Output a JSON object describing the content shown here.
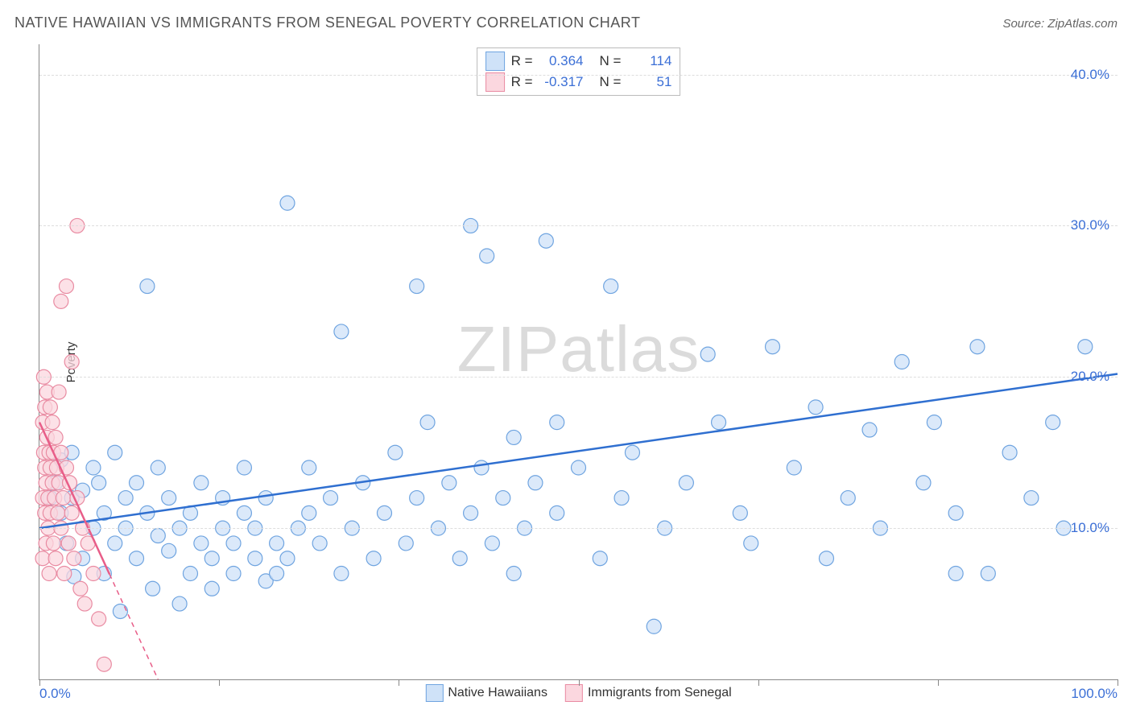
{
  "title": "NATIVE HAWAIIAN VS IMMIGRANTS FROM SENEGAL POVERTY CORRELATION CHART",
  "source": "Source: ZipAtlas.com",
  "watermark": "ZIPatlas",
  "ylabel": "Poverty",
  "chart": {
    "type": "scatter",
    "background_color": "#ffffff",
    "grid_color": "#dddddd",
    "axis_color": "#888888",
    "xlim": [
      0,
      100
    ],
    "ylim": [
      0,
      42
    ],
    "ytick_values": [
      10,
      20,
      30,
      40
    ],
    "ytick_labels": [
      "10.0%",
      "20.0%",
      "30.0%",
      "40.0%"
    ],
    "xtick_values": [
      0,
      16.67,
      33.33,
      50,
      66.67,
      83.33,
      100
    ],
    "xtick_labels_shown": {
      "0": "0.0%",
      "100": "100.0%"
    },
    "tick_label_color": "#3b6fd6",
    "tick_label_fontsize": 17,
    "marker_radius": 9,
    "marker_stroke_width": 1.2,
    "trend_line_width": 2.5,
    "series": [
      {
        "name": "Native Hawaiians",
        "fill": "#cfe2f8",
        "stroke": "#6fa4e0",
        "line_color": "#2f6fd0",
        "R": 0.364,
        "N": 114,
        "trend": {
          "x1": 0,
          "y1": 10.0,
          "x2": 100,
          "y2": 20.2,
          "dash_after_x": null
        },
        "points": [
          [
            1,
            12
          ],
          [
            1.5,
            13
          ],
          [
            2,
            11
          ],
          [
            2,
            14.5
          ],
          [
            2.5,
            9
          ],
          [
            3,
            12
          ],
          [
            3,
            15
          ],
          [
            3.2,
            6.8
          ],
          [
            4,
            12.5
          ],
          [
            4,
            8
          ],
          [
            5,
            14
          ],
          [
            5,
            10
          ],
          [
            5.5,
            13
          ],
          [
            6,
            7
          ],
          [
            6,
            11
          ],
          [
            7,
            15
          ],
          [
            7,
            9
          ],
          [
            7.5,
            4.5
          ],
          [
            8,
            12
          ],
          [
            8,
            10
          ],
          [
            9,
            13
          ],
          [
            9,
            8
          ],
          [
            10,
            11
          ],
          [
            10,
            26
          ],
          [
            10.5,
            6
          ],
          [
            11,
            9.5
          ],
          [
            11,
            14
          ],
          [
            12,
            8.5
          ],
          [
            12,
            12
          ],
          [
            13,
            10
          ],
          [
            13,
            5
          ],
          [
            14,
            7
          ],
          [
            14,
            11
          ],
          [
            15,
            9
          ],
          [
            15,
            13
          ],
          [
            16,
            8
          ],
          [
            16,
            6
          ],
          [
            17,
            10
          ],
          [
            17,
            12
          ],
          [
            18,
            7
          ],
          [
            18,
            9
          ],
          [
            19,
            11
          ],
          [
            19,
            14
          ],
          [
            20,
            8
          ],
          [
            20,
            10
          ],
          [
            21,
            6.5
          ],
          [
            21,
            12
          ],
          [
            22,
            9
          ],
          [
            22,
            7
          ],
          [
            23,
            31.5
          ],
          [
            23,
            8
          ],
          [
            24,
            10
          ],
          [
            25,
            14
          ],
          [
            25,
            11
          ],
          [
            26,
            9
          ],
          [
            27,
            12
          ],
          [
            28,
            23
          ],
          [
            28,
            7
          ],
          [
            29,
            10
          ],
          [
            30,
            13
          ],
          [
            31,
            8
          ],
          [
            32,
            11
          ],
          [
            33,
            15
          ],
          [
            34,
            9
          ],
          [
            35,
            12
          ],
          [
            35,
            26
          ],
          [
            36,
            17
          ],
          [
            37,
            10
          ],
          [
            38,
            13
          ],
          [
            39,
            8
          ],
          [
            40,
            30
          ],
          [
            40,
            11
          ],
          [
            41,
            14
          ],
          [
            41.5,
            28
          ],
          [
            42,
            9
          ],
          [
            43,
            12
          ],
          [
            44,
            16
          ],
          [
            44,
            7
          ],
          [
            45,
            10
          ],
          [
            46,
            13
          ],
          [
            47,
            29
          ],
          [
            48,
            11
          ],
          [
            48,
            17
          ],
          [
            50,
            14
          ],
          [
            52,
            8
          ],
          [
            53,
            26
          ],
          [
            54,
            12
          ],
          [
            55,
            15
          ],
          [
            57,
            3.5
          ],
          [
            58,
            10
          ],
          [
            60,
            13
          ],
          [
            62,
            21.5
          ],
          [
            63,
            17
          ],
          [
            65,
            11
          ],
          [
            66,
            9
          ],
          [
            68,
            22
          ],
          [
            70,
            14
          ],
          [
            72,
            18
          ],
          [
            73,
            8
          ],
          [
            75,
            12
          ],
          [
            77,
            16.5
          ],
          [
            78,
            10
          ],
          [
            80,
            21
          ],
          [
            82,
            13
          ],
          [
            83,
            17
          ],
          [
            85,
            11
          ],
          [
            87,
            22
          ],
          [
            88,
            7
          ],
          [
            90,
            15
          ],
          [
            92,
            12
          ],
          [
            94,
            17
          ],
          [
            95,
            10
          ],
          [
            97,
            22
          ],
          [
            85,
            7
          ]
        ]
      },
      {
        "name": "Immigrants from Senegal",
        "fill": "#fbd7df",
        "stroke": "#e98ba2",
        "line_color": "#e85d88",
        "R": -0.317,
        "N": 51,
        "trend": {
          "x1": 0,
          "y1": 17.0,
          "x2": 11,
          "y2": 0,
          "dash_after_x": 6.5
        },
        "points": [
          [
            0.3,
            12
          ],
          [
            0.3,
            17
          ],
          [
            0.3,
            8
          ],
          [
            0.4,
            15
          ],
          [
            0.4,
            20
          ],
          [
            0.5,
            11
          ],
          [
            0.5,
            14
          ],
          [
            0.5,
            18
          ],
          [
            0.6,
            9
          ],
          [
            0.6,
            13
          ],
          [
            0.7,
            16
          ],
          [
            0.7,
            19
          ],
          [
            0.8,
            10
          ],
          [
            0.8,
            12
          ],
          [
            0.9,
            15
          ],
          [
            0.9,
            7
          ],
          [
            1,
            14
          ],
          [
            1,
            18
          ],
          [
            1,
            11
          ],
          [
            1.2,
            13
          ],
          [
            1.2,
            17
          ],
          [
            1.3,
            9
          ],
          [
            1.3,
            15
          ],
          [
            1.4,
            12
          ],
          [
            1.5,
            16
          ],
          [
            1.5,
            8
          ],
          [
            1.6,
            14
          ],
          [
            1.7,
            11
          ],
          [
            1.8,
            13
          ],
          [
            1.8,
            19
          ],
          [
            2,
            10
          ],
          [
            2,
            15
          ],
          [
            2,
            25
          ],
          [
            2.2,
            12
          ],
          [
            2.3,
            7
          ],
          [
            2.5,
            14
          ],
          [
            2.5,
            26
          ],
          [
            2.7,
            9
          ],
          [
            2.8,
            13
          ],
          [
            3,
            11
          ],
          [
            3,
            21
          ],
          [
            3.2,
            8
          ],
          [
            3.5,
            12
          ],
          [
            3.5,
            30
          ],
          [
            3.8,
            6
          ],
          [
            4,
            10
          ],
          [
            4.2,
            5
          ],
          [
            4.5,
            9
          ],
          [
            5,
            7
          ],
          [
            5.5,
            4
          ],
          [
            6,
            1
          ]
        ]
      }
    ]
  },
  "legend_top": {
    "r_label": "R =",
    "n_label": "N ="
  },
  "legend_bottom": {
    "items": [
      "Native Hawaiians",
      "Immigrants from Senegal"
    ]
  }
}
